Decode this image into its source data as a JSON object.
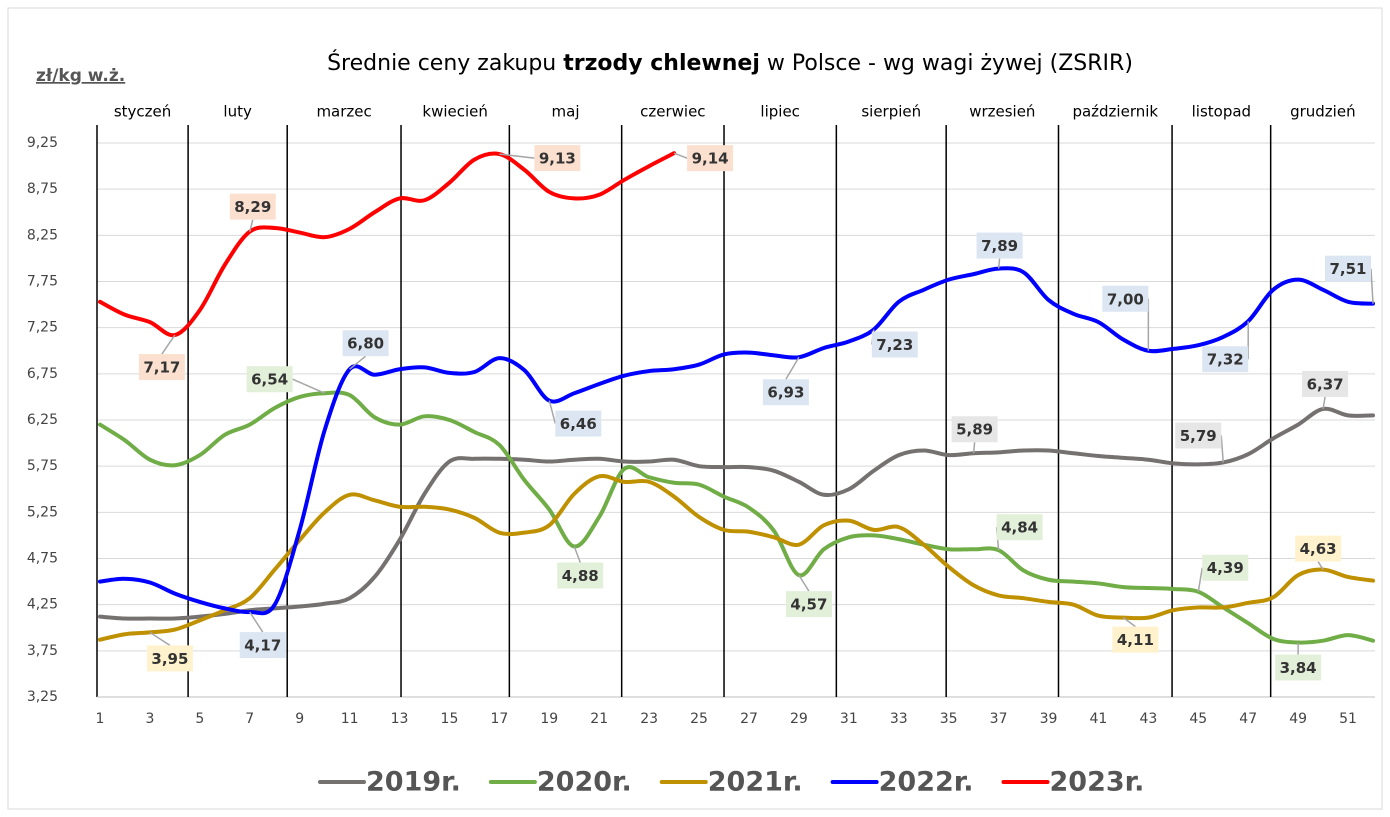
{
  "chart_data": {
    "type": "line",
    "title_parts": [
      "Średnie ceny zakupu ",
      "trzody chlewnej",
      " w Polsce - wg wagi żywej (ZSRIR)"
    ],
    "ylabel": "zł/kg w.ż.",
    "months": [
      "styczeń",
      "luty",
      "marzec",
      "kwiecień",
      "maj",
      "czerwiec",
      "lipiec",
      "sierpień",
      "wrzesień",
      "październik",
      "listopad",
      "grudzień"
    ],
    "month_boundaries": [
      4.53,
      8.5,
      13.06,
      17.4,
      21.9,
      26,
      30.5,
      34.9,
      39.4,
      43.95,
      47.9
    ],
    "x": [
      1,
      2,
      3,
      4,
      5,
      6,
      7,
      8,
      9,
      10,
      11,
      12,
      13,
      14,
      15,
      16,
      17,
      18,
      19,
      20,
      21,
      22,
      23,
      24,
      25,
      26,
      27,
      28,
      29,
      30,
      31,
      32,
      33,
      34,
      35,
      36,
      37,
      38,
      39,
      40,
      41,
      42,
      43,
      44,
      45,
      46,
      47,
      48,
      49,
      50,
      51,
      52
    ],
    "xlim": [
      0.88,
      52.08
    ],
    "xticks": [
      1,
      3,
      5,
      7,
      9,
      11,
      13,
      15,
      17,
      19,
      21,
      23,
      25,
      27,
      29,
      31,
      33,
      35,
      37,
      39,
      41,
      43,
      45,
      47,
      49,
      51
    ],
    "ylim": [
      3.25,
      9.25
    ],
    "yticks": [
      {
        "value": 3.25,
        "label": "3,25"
      },
      {
        "value": 3.75,
        "label": "3,75"
      },
      {
        "value": 4.25,
        "label": "4,25"
      },
      {
        "value": 4.75,
        "label": "4,75"
      },
      {
        "value": 5.25,
        "label": "5,25"
      },
      {
        "value": 5.75,
        "label": "5,75"
      },
      {
        "value": 6.25,
        "label": "6,25"
      },
      {
        "value": 6.75,
        "label": "6,75"
      },
      {
        "value": 7.25,
        "label": "7,25"
      },
      {
        "value": 7.75,
        "label": "7,75"
      },
      {
        "value": 8.25,
        "label": "8,25"
      },
      {
        "value": 8.75,
        "label": "8,75"
      },
      {
        "value": 9.25,
        "label": "9,25"
      }
    ],
    "grid": true,
    "legend": "bottom",
    "series": [
      {
        "name": "2019r.",
        "color": "#767171",
        "label_color": "#e7e6e6",
        "values": [
          4.12,
          4.1,
          4.1,
          4.1,
          4.12,
          4.15,
          4.19,
          4.21,
          4.23,
          4.26,
          4.32,
          4.55,
          4.95,
          5.45,
          5.8,
          5.83,
          5.83,
          5.82,
          5.8,
          5.82,
          5.83,
          5.8,
          5.8,
          5.82,
          5.75,
          5.74,
          5.74,
          5.7,
          5.58,
          5.44,
          5.5,
          5.7,
          5.87,
          5.92,
          5.87,
          5.89,
          5.9,
          5.92,
          5.92,
          5.89,
          5.86,
          5.84,
          5.82,
          5.78,
          5.77,
          5.79,
          5.88,
          6.05,
          6.2,
          6.37,
          6.3,
          6.3
        ],
        "value_labels": [
          null,
          null,
          null,
          null,
          null,
          null,
          null,
          null,
          null,
          null,
          null,
          null,
          null,
          null,
          null,
          null,
          null,
          null,
          null,
          null,
          null,
          null,
          null,
          null,
          null,
          null,
          null,
          null,
          null,
          null,
          null,
          null,
          null,
          null,
          null,
          "5,89",
          null,
          null,
          null,
          null,
          null,
          null,
          null,
          null,
          null,
          "5,79",
          null,
          null,
          null,
          "6,37",
          null,
          null
        ]
      },
      {
        "name": "2020r.",
        "color": "#70ad47",
        "label_color": "#e2efd9",
        "values": [
          6.2,
          6.03,
          5.82,
          5.76,
          5.87,
          6.09,
          6.2,
          6.38,
          6.5,
          6.54,
          6.52,
          6.28,
          6.2,
          6.29,
          6.25,
          6.12,
          5.98,
          5.6,
          5.28,
          4.88,
          5.2,
          5.72,
          5.63,
          5.57,
          5.55,
          5.42,
          5.3,
          5.05,
          4.57,
          4.85,
          4.98,
          5.0,
          4.96,
          4.9,
          4.85,
          4.85,
          4.84,
          4.62,
          4.52,
          4.5,
          4.48,
          4.44,
          4.43,
          4.42,
          4.39,
          4.22,
          4.05,
          3.88,
          3.84,
          3.86,
          3.92,
          3.86
        ],
        "value_labels": [
          null,
          null,
          null,
          null,
          null,
          null,
          null,
          null,
          null,
          "6,54",
          null,
          null,
          null,
          null,
          null,
          null,
          null,
          null,
          null,
          "4,88",
          null,
          null,
          null,
          null,
          null,
          null,
          null,
          null,
          "4,57",
          null,
          null,
          null,
          null,
          null,
          null,
          null,
          "4,84",
          null,
          null,
          null,
          null,
          null,
          null,
          null,
          "4,39",
          null,
          null,
          null,
          "3,84",
          null,
          null,
          null
        ]
      },
      {
        "name": "2021r.",
        "color": "#bf9000",
        "label_color": "#fff2cc",
        "values": [
          3.87,
          3.93,
          3.95,
          3.98,
          4.08,
          4.19,
          4.32,
          4.63,
          4.95,
          5.25,
          5.44,
          5.38,
          5.31,
          5.31,
          5.28,
          5.19,
          5.03,
          5.03,
          5.11,
          5.45,
          5.64,
          5.58,
          5.58,
          5.42,
          5.2,
          5.06,
          5.04,
          4.98,
          4.9,
          5.11,
          5.16,
          5.06,
          5.09,
          4.9,
          4.66,
          4.46,
          4.35,
          4.32,
          4.28,
          4.25,
          4.13,
          4.11,
          4.11,
          4.19,
          4.22,
          4.22,
          4.27,
          4.33,
          4.57,
          4.63,
          4.55,
          4.51
        ],
        "value_labels": [
          null,
          null,
          "3,95",
          null,
          null,
          null,
          null,
          null,
          null,
          null,
          null,
          null,
          null,
          null,
          null,
          null,
          null,
          null,
          null,
          null,
          null,
          null,
          null,
          null,
          null,
          null,
          null,
          null,
          null,
          null,
          null,
          null,
          null,
          null,
          null,
          null,
          null,
          null,
          null,
          null,
          null,
          "4,11",
          null,
          null,
          null,
          null,
          null,
          null,
          null,
          "4,63",
          null,
          null
        ]
      },
      {
        "name": "2022r.",
        "color": "#0000ff",
        "label_color": "#dce6f2",
        "values": [
          4.5,
          4.53,
          4.49,
          4.37,
          4.28,
          4.21,
          4.17,
          4.25,
          5.06,
          6.14,
          6.8,
          6.74,
          6.8,
          6.82,
          6.76,
          6.77,
          6.92,
          6.79,
          6.46,
          6.54,
          6.64,
          6.73,
          6.78,
          6.8,
          6.85,
          6.96,
          6.98,
          6.95,
          6.93,
          7.03,
          7.1,
          7.23,
          7.53,
          7.66,
          7.77,
          7.83,
          7.89,
          7.85,
          7.55,
          7.4,
          7.31,
          7.12,
          7.0,
          7.02,
          7.06,
          7.15,
          7.32,
          7.66,
          7.77,
          7.66,
          7.53,
          7.51
        ],
        "value_labels": [
          null,
          null,
          null,
          null,
          null,
          null,
          "4,17",
          null,
          null,
          null,
          "6,80",
          null,
          null,
          null,
          null,
          null,
          null,
          null,
          "6,46",
          null,
          null,
          null,
          null,
          null,
          null,
          null,
          null,
          null,
          "6,93",
          null,
          null,
          "7,23",
          null,
          null,
          null,
          null,
          "7,89",
          null,
          null,
          null,
          null,
          null,
          "7,00",
          null,
          null,
          null,
          "7,32",
          null,
          null,
          null,
          null,
          "7,51"
        ]
      },
      {
        "name": "2023r.",
        "color": "#ff0000",
        "label_color": "#fbe0d0",
        "values": [
          7.53,
          7.39,
          7.31,
          7.17,
          7.44,
          7.93,
          8.29,
          8.33,
          8.28,
          8.23,
          8.32,
          8.5,
          8.65,
          8.63,
          8.82,
          9.07,
          9.13,
          8.96,
          8.72,
          8.65,
          8.69,
          8.85,
          9.0,
          9.14,
          null,
          null,
          null,
          null,
          null,
          null,
          null,
          null,
          null,
          null,
          null,
          null,
          null,
          null,
          null,
          null,
          null,
          null,
          null,
          null,
          null,
          null,
          null,
          null,
          null,
          null,
          null,
          null
        ],
        "value_labels": [
          null,
          null,
          null,
          "7,17",
          null,
          null,
          "8,29",
          null,
          null,
          null,
          null,
          null,
          null,
          null,
          null,
          null,
          "9,13",
          null,
          null,
          null,
          null,
          null,
          null,
          "9,14",
          null,
          null,
          null,
          null,
          null,
          null,
          null,
          null,
          null,
          null,
          null,
          null,
          null,
          null,
          null,
          null,
          null,
          null,
          null,
          null,
          null,
          null,
          null,
          null,
          null,
          null,
          null,
          null
        ]
      }
    ]
  }
}
